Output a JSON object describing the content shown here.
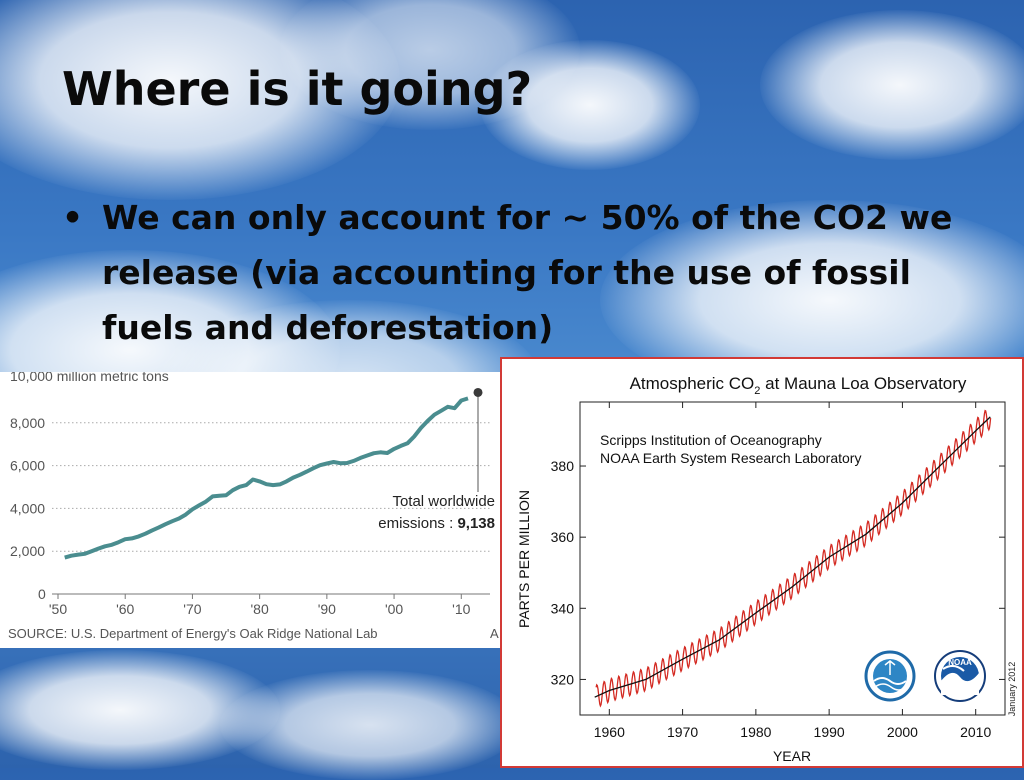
{
  "slide": {
    "title": "Where is it going?",
    "bullet_symbol": "•",
    "bullet_text": "We can only account for ~ 50% of the CO2 we release (via accounting for the use of fossil fuels and deforestation)"
  },
  "chart_data": [
    {
      "type": "line",
      "title": "",
      "ylabel": "",
      "ytick_labels": [
        "0",
        "2,000",
        "4,000",
        "6,000",
        "8,000",
        "10,000 million metric tons"
      ],
      "yticks": [
        0,
        2000,
        4000,
        6000,
        8000,
        10000
      ],
      "xtick_labels": [
        "'50",
        "'60",
        "'70",
        "'80",
        "'90",
        "'00",
        "'10"
      ],
      "xticks": [
        1950,
        1960,
        1970,
        1980,
        1990,
        2000,
        2010
      ],
      "xlim": [
        1950,
        2011
      ],
      "ylim": [
        0,
        10000
      ],
      "series": [
        {
          "x": [
            1951,
            1952,
            1953,
            1954,
            1955,
            1956,
            1957,
            1958,
            1959,
            1960,
            1961,
            1962,
            1963,
            1964,
            1965,
            1966,
            1967,
            1968,
            1969,
            1970,
            1971,
            1972,
            1973,
            1974,
            1975,
            1976,
            1977,
            1978,
            1979,
            1980,
            1981,
            1982,
            1983,
            1984,
            1985,
            1986,
            1987,
            1988,
            1989,
            1990,
            1991,
            1992,
            1993,
            1994,
            1995,
            1996,
            1997,
            1998,
            1999,
            2000,
            2001,
            2002,
            2003,
            2004,
            2005,
            2006,
            2007,
            2008,
            2009,
            2010,
            2011
          ],
          "y": [
            1700,
            1790,
            1840,
            1880,
            2000,
            2120,
            2230,
            2300,
            2420,
            2560,
            2600,
            2690,
            2820,
            2970,
            3110,
            3260,
            3400,
            3530,
            3710,
            3960,
            4140,
            4320,
            4560,
            4590,
            4610,
            4850,
            5010,
            5090,
            5350,
            5260,
            5130,
            5090,
            5120,
            5260,
            5440,
            5570,
            5720,
            5880,
            6020,
            6100,
            6170,
            6110,
            6120,
            6220,
            6360,
            6470,
            6580,
            6620,
            6590,
            6780,
            6920,
            7040,
            7360,
            7760,
            8090,
            8380,
            8560,
            8750,
            8680,
            9040,
            9138
          ]
        }
      ],
      "annotation": {
        "label": "Total worldwide",
        "label2": "emissions : ",
        "value": "9,138"
      },
      "source": "SOURCE: U.S. Department of Energy's Oak Ridge National Lab",
      "cutoff_char": "A",
      "grid": true,
      "line_color": "#4a8d8f"
    },
    {
      "type": "line",
      "title_main": "Atmospheric CO",
      "title_sub": "2",
      "title_rest": " at Mauna Loa Observatory",
      "xlabel": "YEAR",
      "ylabel": "PARTS PER MILLION",
      "xticks": [
        1960,
        1970,
        1980,
        1990,
        2000,
        2010
      ],
      "yticks": [
        320,
        340,
        360,
        380
      ],
      "xlim": [
        1956,
        2014
      ],
      "ylim": [
        310,
        398
      ],
      "institutions": [
        "Scripps Institution of Oceanography",
        "NOAA Earth System Research Laboratory"
      ],
      "date_note": "January 2012",
      "logos": [
        "scripps-logo",
        "noaa-logo"
      ],
      "logo_text": "NOAA",
      "series": [
        {
          "name": "",
          "color": "#d42a22",
          "kind": "monthly",
          "x_start": 1958.2,
          "x_end": 2012.0,
          "trend_points": [
            [
              1958,
              315
            ],
            [
              1960,
              316.9
            ],
            [
              1965,
              320
            ],
            [
              1970,
              325.7
            ],
            [
              1975,
              331.1
            ],
            [
              1980,
              338.7
            ],
            [
              1985,
              346.1
            ],
            [
              1990,
              354.4
            ],
            [
              1995,
              360.8
            ],
            [
              2000,
              369.6
            ],
            [
              2005,
              379.8
            ],
            [
              2010,
              389.9
            ],
            [
              2012,
              393.8
            ]
          ],
          "seasonal_amplitude_ppm": 3.2
        },
        {
          "name": "",
          "color": "#111111",
          "kind": "trend",
          "x": [
            1958,
            1960,
            1965,
            1970,
            1975,
            1980,
            1985,
            1990,
            1995,
            2000,
            2005,
            2010,
            2012
          ],
          "y": [
            315,
            316.9,
            320,
            325.7,
            331.1,
            338.7,
            346.1,
            354.4,
            360.8,
            369.6,
            379.8,
            389.9,
            393.8
          ]
        }
      ]
    }
  ]
}
